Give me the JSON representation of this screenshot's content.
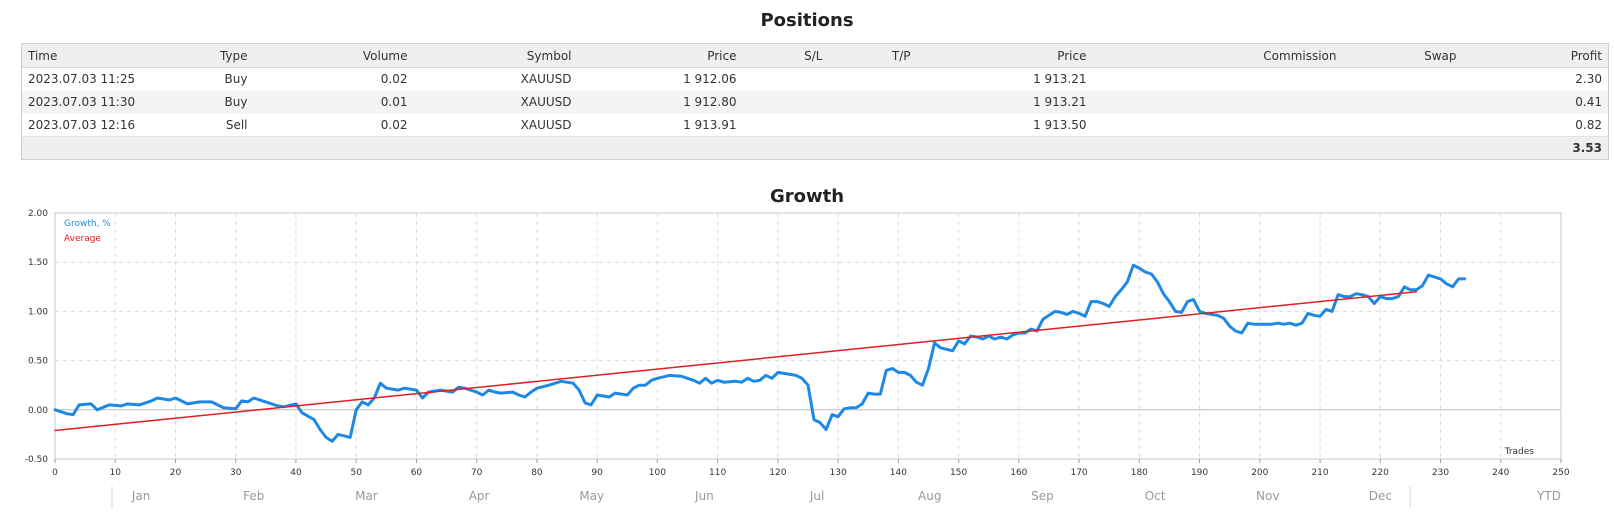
{
  "positions": {
    "title": "Positions",
    "columns": [
      "Time",
      "Type",
      "Volume",
      "Symbol",
      "Price",
      "S/L",
      "T/P",
      "Price",
      "Commission",
      "Swap",
      "Profit"
    ],
    "rows": [
      {
        "time": "2023.07.03 11:25",
        "type": "Buy",
        "volume": "0.02",
        "symbol": "XAUUSD",
        "open_price": "1 912.06",
        "sl": "",
        "tp": "",
        "price": "1 913.21",
        "commission": "",
        "swap": "",
        "profit": "2.30"
      },
      {
        "time": "2023.07.03 11:30",
        "type": "Buy",
        "volume": "0.01",
        "symbol": "XAUUSD",
        "open_price": "1 912.80",
        "sl": "",
        "tp": "",
        "price": "1 913.21",
        "commission": "",
        "swap": "",
        "profit": "0.41"
      },
      {
        "time": "2023.07.03 12:16",
        "type": "Sell",
        "volume": "0.02",
        "symbol": "XAUUSD",
        "open_price": "1 913.91",
        "sl": "",
        "tp": "",
        "price": "1 913.50",
        "commission": "",
        "swap": "",
        "profit": "0.82"
      }
    ],
    "total_profit": "3.53"
  },
  "growth": {
    "title": "Growth"
  },
  "chart_data": {
    "type": "line",
    "title": "Growth",
    "xlabel": "Trades",
    "ylabel": "",
    "xlim": [
      0,
      250
    ],
    "ylim": [
      -0.5,
      2.0
    ],
    "x_ticks": [
      0,
      10,
      20,
      30,
      40,
      50,
      60,
      70,
      80,
      90,
      100,
      110,
      120,
      130,
      140,
      150,
      160,
      170,
      180,
      190,
      200,
      210,
      220,
      230,
      240,
      250
    ],
    "y_ticks": [
      -0.5,
      0.0,
      0.5,
      1.0,
      1.5,
      2.0
    ],
    "y_tick_labels": [
      "-0.50",
      "0.00",
      "0.50",
      "1.00",
      "1.50",
      "2.00"
    ],
    "grid": true,
    "legend_position": "top-left",
    "months": [
      "Jan",
      "Feb",
      "Mar",
      "Apr",
      "May",
      "Jun",
      "Jul",
      "Aug",
      "Sep",
      "Oct",
      "Nov",
      "Dec",
      "YTD"
    ],
    "series": [
      {
        "name": "Growth, %",
        "color": "#1e88e5",
        "points": [
          [
            0,
            0.0
          ],
          [
            2,
            -0.04
          ],
          [
            3,
            -0.05
          ],
          [
            4,
            0.05
          ],
          [
            6,
            0.06
          ],
          [
            7,
            0.0
          ],
          [
            9,
            0.05
          ],
          [
            11,
            0.04
          ],
          [
            12,
            0.06
          ],
          [
            14,
            0.05
          ],
          [
            16,
            0.09
          ],
          [
            17,
            0.12
          ],
          [
            19,
            0.1
          ],
          [
            20,
            0.12
          ],
          [
            22,
            0.06
          ],
          [
            24,
            0.08
          ],
          [
            26,
            0.08
          ],
          [
            28,
            0.02
          ],
          [
            30,
            0.01
          ],
          [
            31,
            0.09
          ],
          [
            32,
            0.08
          ],
          [
            33,
            0.12
          ],
          [
            35,
            0.08
          ],
          [
            37,
            0.04
          ],
          [
            38,
            0.03
          ],
          [
            40,
            0.06
          ],
          [
            41,
            -0.03
          ],
          [
            43,
            -0.1
          ],
          [
            44,
            -0.2
          ],
          [
            45,
            -0.28
          ],
          [
            46,
            -0.32
          ],
          [
            47,
            -0.25
          ],
          [
            49,
            -0.28
          ],
          [
            50,
            0.0
          ],
          [
            51,
            0.08
          ],
          [
            52,
            0.05
          ],
          [
            53,
            0.12
          ],
          [
            54,
            0.27
          ],
          [
            55,
            0.22
          ],
          [
            57,
            0.2
          ],
          [
            58,
            0.22
          ],
          [
            60,
            0.2
          ],
          [
            61,
            0.12
          ],
          [
            62,
            0.18
          ],
          [
            64,
            0.2
          ],
          [
            66,
            0.18
          ],
          [
            67,
            0.23
          ],
          [
            68,
            0.22
          ],
          [
            70,
            0.18
          ],
          [
            71,
            0.15
          ],
          [
            72,
            0.2
          ],
          [
            73,
            0.18
          ],
          [
            74,
            0.17
          ],
          [
            76,
            0.18
          ],
          [
            77,
            0.15
          ],
          [
            78,
            0.13
          ],
          [
            79,
            0.18
          ],
          [
            80,
            0.22
          ],
          [
            82,
            0.25
          ],
          [
            84,
            0.29
          ],
          [
            86,
            0.27
          ],
          [
            87,
            0.2
          ],
          [
            88,
            0.07
          ],
          [
            89,
            0.05
          ],
          [
            90,
            0.15
          ],
          [
            92,
            0.13
          ],
          [
            93,
            0.17
          ],
          [
            95,
            0.15
          ],
          [
            96,
            0.22
          ],
          [
            97,
            0.25
          ],
          [
            98,
            0.25
          ],
          [
            99,
            0.3
          ],
          [
            100,
            0.32
          ],
          [
            102,
            0.35
          ],
          [
            104,
            0.34
          ],
          [
            106,
            0.3
          ],
          [
            107,
            0.27
          ],
          [
            108,
            0.32
          ],
          [
            109,
            0.27
          ],
          [
            110,
            0.3
          ],
          [
            111,
            0.28
          ],
          [
            113,
            0.29
          ],
          [
            114,
            0.28
          ],
          [
            115,
            0.32
          ],
          [
            116,
            0.29
          ],
          [
            117,
            0.3
          ],
          [
            118,
            0.35
          ],
          [
            119,
            0.32
          ],
          [
            120,
            0.38
          ],
          [
            121,
            0.37
          ],
          [
            123,
            0.35
          ],
          [
            124,
            0.32
          ],
          [
            125,
            0.25
          ],
          [
            126,
            -0.1
          ],
          [
            127,
            -0.13
          ],
          [
            128,
            -0.2
          ],
          [
            129,
            -0.05
          ],
          [
            130,
            -0.07
          ],
          [
            131,
            0.01
          ],
          [
            132,
            0.02
          ],
          [
            133,
            0.02
          ],
          [
            134,
            0.06
          ],
          [
            135,
            0.17
          ],
          [
            136,
            0.16
          ],
          [
            137,
            0.16
          ],
          [
            138,
            0.4
          ],
          [
            139,
            0.42
          ],
          [
            140,
            0.38
          ],
          [
            141,
            0.38
          ],
          [
            142,
            0.35
          ],
          [
            143,
            0.28
          ],
          [
            144,
            0.25
          ],
          [
            145,
            0.42
          ],
          [
            146,
            0.68
          ],
          [
            147,
            0.63
          ],
          [
            149,
            0.6
          ],
          [
            150,
            0.7
          ],
          [
            151,
            0.67
          ],
          [
            152,
            0.75
          ],
          [
            153,
            0.74
          ],
          [
            154,
            0.72
          ],
          [
            155,
            0.75
          ],
          [
            156,
            0.72
          ],
          [
            157,
            0.74
          ],
          [
            158,
            0.72
          ],
          [
            159,
            0.76
          ],
          [
            160,
            0.78
          ],
          [
            161,
            0.78
          ],
          [
            162,
            0.82
          ],
          [
            163,
            0.8
          ],
          [
            164,
            0.92
          ],
          [
            165,
            0.96
          ],
          [
            166,
            1.0
          ],
          [
            167,
            0.99
          ],
          [
            168,
            0.97
          ],
          [
            169,
            1.0
          ],
          [
            170,
            0.98
          ],
          [
            171,
            0.95
          ],
          [
            172,
            1.1
          ],
          [
            173,
            1.1
          ],
          [
            174,
            1.08
          ],
          [
            175,
            1.05
          ],
          [
            176,
            1.15
          ],
          [
            177,
            1.22
          ],
          [
            178,
            1.3
          ],
          [
            179,
            1.47
          ],
          [
            180,
            1.44
          ],
          [
            181,
            1.4
          ],
          [
            182,
            1.38
          ],
          [
            183,
            1.3
          ],
          [
            184,
            1.18
          ],
          [
            185,
            1.1
          ],
          [
            186,
            1.0
          ],
          [
            187,
            0.99
          ],
          [
            188,
            1.1
          ],
          [
            189,
            1.12
          ],
          [
            190,
            1.0
          ],
          [
            191,
            0.98
          ],
          [
            192,
            0.97
          ],
          [
            193,
            0.96
          ],
          [
            194,
            0.93
          ],
          [
            195,
            0.85
          ],
          [
            196,
            0.8
          ],
          [
            197,
            0.78
          ],
          [
            198,
            0.88
          ],
          [
            199,
            0.87
          ],
          [
            200,
            0.87
          ],
          [
            202,
            0.87
          ],
          [
            203,
            0.88
          ],
          [
            204,
            0.87
          ],
          [
            205,
            0.88
          ],
          [
            206,
            0.86
          ],
          [
            207,
            0.88
          ],
          [
            208,
            0.98
          ],
          [
            209,
            0.96
          ],
          [
            210,
            0.95
          ],
          [
            211,
            1.02
          ],
          [
            212,
            1.0
          ],
          [
            213,
            1.17
          ],
          [
            214,
            1.15
          ],
          [
            215,
            1.15
          ],
          [
            216,
            1.18
          ],
          [
            217,
            1.17
          ],
          [
            218,
            1.15
          ],
          [
            219,
            1.08
          ],
          [
            220,
            1.15
          ],
          [
            221,
            1.13
          ],
          [
            222,
            1.13
          ],
          [
            223,
            1.15
          ],
          [
            224,
            1.25
          ],
          [
            225,
            1.22
          ],
          [
            226,
            1.22
          ],
          [
            227,
            1.26
          ],
          [
            228,
            1.37
          ],
          [
            229,
            1.35
          ],
          [
            230,
            1.33
          ],
          [
            231,
            1.28
          ],
          [
            232,
            1.25
          ],
          [
            233,
            1.33
          ],
          [
            234,
            1.33
          ]
        ]
      },
      {
        "name": "Average",
        "color": "#e02020",
        "points": [
          [
            0,
            -0.21
          ],
          [
            226,
            1.2
          ]
        ]
      }
    ]
  }
}
